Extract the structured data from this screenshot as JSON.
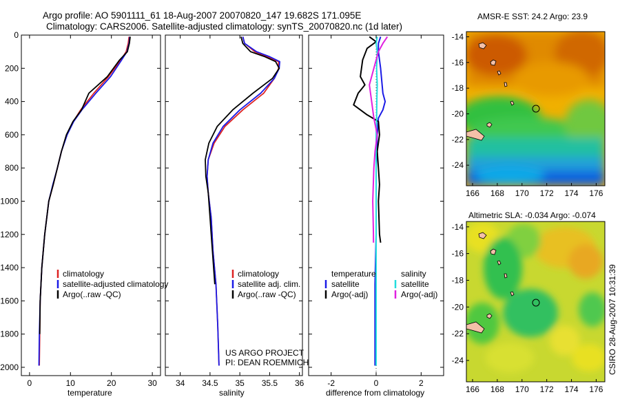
{
  "header": {
    "title_line1": "Argo profile: AO 5901111_61 18-Aug-2007 20070820_147 19.682S 171.095E",
    "title_line2": "Climatology: CARS2006. Satellite-adjusted climatology: synTS_20070820.nc (1d later)"
  },
  "side_label": "CSIRO 28-Aug-2007 10:31:39",
  "credit": {
    "line1": "US ARGO PROJECT",
    "line2": "PI: DEAN ROEMMICH"
  },
  "colors": {
    "climatology": "#dd2222",
    "satellite": "#1a1ae6",
    "argo": "#000000",
    "sat_diff": "#22dddd",
    "argo_adj": "#e020e0"
  },
  "chart_data": [
    {
      "type": "line",
      "xlabel": "temperature",
      "ylabel": "",
      "xlim": [
        -2,
        32
      ],
      "ylim": [
        2050,
        0
      ],
      "y_reversed": true,
      "xticks": [
        0,
        10,
        20,
        30
      ],
      "yticks": [
        0,
        200,
        400,
        600,
        800,
        1000,
        1200,
        1400,
        1600,
        1800,
        2000
      ],
      "legend": {
        "placement": "lower-right",
        "entries": [
          "climatology",
          "satellite-adjusted climatology",
          "Argo(..raw -QC)"
        ]
      },
      "series": [
        {
          "name": "climatology",
          "color": "#dd2222",
          "x": [
            24.3,
            24.1,
            23.6,
            22.3,
            19.3,
            15.7,
            12.5,
            10.7,
            9.1,
            7.8,
            6.8,
            5.8,
            4.7,
            3.7,
            3.0,
            2.6,
            2.5,
            2.4
          ],
          "y": [
            10,
            50,
            100,
            150,
            250,
            350,
            450,
            520,
            600,
            700,
            800,
            900,
            1000,
            1200,
            1400,
            1600,
            1800,
            1990
          ]
        },
        {
          "name": "satellite-adjusted climatology",
          "color": "#1a1ae6",
          "x": [
            24.5,
            24.3,
            23.8,
            22.5,
            19.8,
            16.2,
            12.8,
            10.8,
            9.2,
            7.8,
            6.8,
            5.7,
            4.7,
            3.7,
            3.0,
            2.6,
            2.4,
            2.3
          ],
          "y": [
            10,
            50,
            100,
            150,
            250,
            350,
            450,
            520,
            600,
            700,
            800,
            900,
            1000,
            1200,
            1400,
            1600,
            1800,
            1990
          ]
        },
        {
          "name": "Argo(..raw -QC)",
          "color": "#000000",
          "x": [
            24.6,
            24.4,
            23.9,
            22.0,
            19.0,
            14.5,
            12.7,
            10.6,
            9.0,
            7.8,
            6.8,
            5.8,
            4.7,
            3.7,
            3.0,
            2.6,
            2.5
          ],
          "y": [
            10,
            50,
            100,
            150,
            250,
            350,
            450,
            520,
            600,
            700,
            800,
            900,
            1000,
            1200,
            1400,
            1600,
            1800
          ]
        }
      ]
    },
    {
      "type": "line",
      "xlabel": "salinity",
      "ylabel": "",
      "xlim": [
        33.75,
        36.05
      ],
      "ylim": [
        2050,
        0
      ],
      "y_reversed": true,
      "xticks": [
        34,
        34.5,
        35,
        35.5,
        36
      ],
      "legend": {
        "placement": "lower-right",
        "entries": [
          "climatology",
          "satellite adj. clim.",
          "Argo(..raw -QC)"
        ]
      },
      "series": [
        {
          "name": "climatology",
          "color": "#dd2222",
          "x": [
            35.05,
            35.08,
            35.25,
            35.45,
            35.65,
            35.65,
            35.58,
            35.4,
            35.05,
            34.75,
            34.57,
            34.47,
            34.45,
            34.47,
            34.52,
            34.55,
            34.6,
            34.63,
            34.65
          ],
          "y": [
            10,
            50,
            100,
            130,
            160,
            200,
            260,
            350,
            450,
            550,
            650,
            750,
            850,
            950,
            1100,
            1300,
            1500,
            1750,
            1990
          ]
        },
        {
          "name": "satellite adj. clim.",
          "color": "#1a1ae6",
          "x": [
            35.05,
            35.08,
            35.28,
            35.5,
            35.67,
            35.66,
            35.58,
            35.35,
            35.0,
            34.72,
            34.55,
            34.47,
            34.45,
            34.47,
            34.52,
            34.55,
            34.6,
            34.63,
            34.65
          ],
          "y": [
            10,
            50,
            100,
            130,
            160,
            200,
            260,
            350,
            450,
            550,
            650,
            750,
            850,
            950,
            1100,
            1300,
            1500,
            1750,
            1990
          ]
        },
        {
          "name": "Argo(..raw -QC)",
          "color": "#000000",
          "x": [
            35.02,
            35.05,
            35.18,
            35.42,
            35.6,
            35.66,
            35.55,
            35.22,
            34.88,
            34.62,
            34.48,
            34.42,
            34.43,
            34.47,
            34.5,
            34.52,
            34.58
          ],
          "y": [
            10,
            50,
            100,
            130,
            160,
            200,
            260,
            350,
            450,
            550,
            650,
            750,
            850,
            950,
            1100,
            1200,
            1500
          ]
        }
      ]
    },
    {
      "type": "line",
      "xlabel": "difference from climatology",
      "ylabel": "",
      "xlim": [
        -3,
        3
      ],
      "ylim": [
        2050,
        0
      ],
      "y_reversed": true,
      "xticks": [
        -2,
        0,
        2
      ],
      "legend": {
        "placement": "middle",
        "entries": [
          "temperature",
          "satellite",
          "Argo(-adj)",
          "salinity",
          "satellite",
          "Argo(-adj)"
        ]
      },
      "series": [
        {
          "name": "temperature satellite",
          "color": "#1a1ae6",
          "x": [
            0.2,
            0.1,
            0.1,
            0.2,
            0.3,
            0.4,
            0.3,
            0.1,
            0.05,
            0.0,
            0.0,
            0.0,
            -0.05,
            -0.05,
            -0.05
          ],
          "y": [
            10,
            50,
            100,
            200,
            350,
            400,
            450,
            500,
            600,
            800,
            1000,
            1200,
            1500,
            1800,
            1990
          ]
        },
        {
          "name": "temperature Argo(-adj)",
          "color": "#000000",
          "x": [
            -0.3,
            0.0,
            -0.4,
            -0.6,
            -0.7,
            -0.5,
            -0.8,
            -1.0,
            -0.4,
            0.1,
            0.15,
            0.05,
            0.1,
            0.15,
            0.1,
            0.15,
            0.2
          ],
          "y": [
            10,
            40,
            80,
            150,
            250,
            300,
            350,
            420,
            480,
            520,
            600,
            700,
            800,
            900,
            1000,
            1200,
            1250
          ]
        },
        {
          "name": "salinity satellite",
          "color": "#22dddd",
          "x": [
            0.05,
            0.0,
            0.05,
            0.02,
            0.05,
            0.03,
            0.02,
            0.0,
            0.0,
            0.0,
            0.0,
            0.0,
            0.0
          ],
          "y": [
            10,
            50,
            100,
            200,
            300,
            400,
            500,
            600,
            800,
            1000,
            1500,
            1800,
            1990
          ]
        },
        {
          "name": "salinity Argo(-adj)",
          "color": "#e020e0",
          "x": [
            0.5,
            0.3,
            0.1,
            -0.1,
            -0.3,
            -0.2,
            -0.1,
            0.05,
            -0.05,
            -0.1,
            -0.15,
            -0.12,
            -0.12
          ],
          "y": [
            10,
            50,
            100,
            200,
            300,
            400,
            500,
            600,
            700,
            800,
            1000,
            1200,
            1250
          ]
        }
      ]
    },
    {
      "type": "heatmap",
      "title": "AMSR-E SST: 24.2  Argo: 23.9",
      "xlim": [
        165.5,
        176.7
      ],
      "ylim": [
        -25.6,
        -13.6
      ],
      "xticks": [
        166,
        168,
        170,
        172,
        174,
        176
      ],
      "yticks": [
        -14,
        -16,
        -18,
        -20,
        -22,
        -24
      ],
      "marker": {
        "lon": 171.1,
        "lat": -19.7
      }
    },
    {
      "type": "heatmap",
      "title": "Altimetric SLA: -0.034  Argo: -0.074",
      "xlim": [
        165.5,
        176.7
      ],
      "ylim": [
        -25.6,
        -13.6
      ],
      "xticks": [
        166,
        168,
        170,
        172,
        174,
        176
      ],
      "yticks": [
        -14,
        -16,
        -18,
        -20,
        -22,
        -24
      ],
      "marker": {
        "lon": 171.1,
        "lat": -19.7
      }
    }
  ]
}
